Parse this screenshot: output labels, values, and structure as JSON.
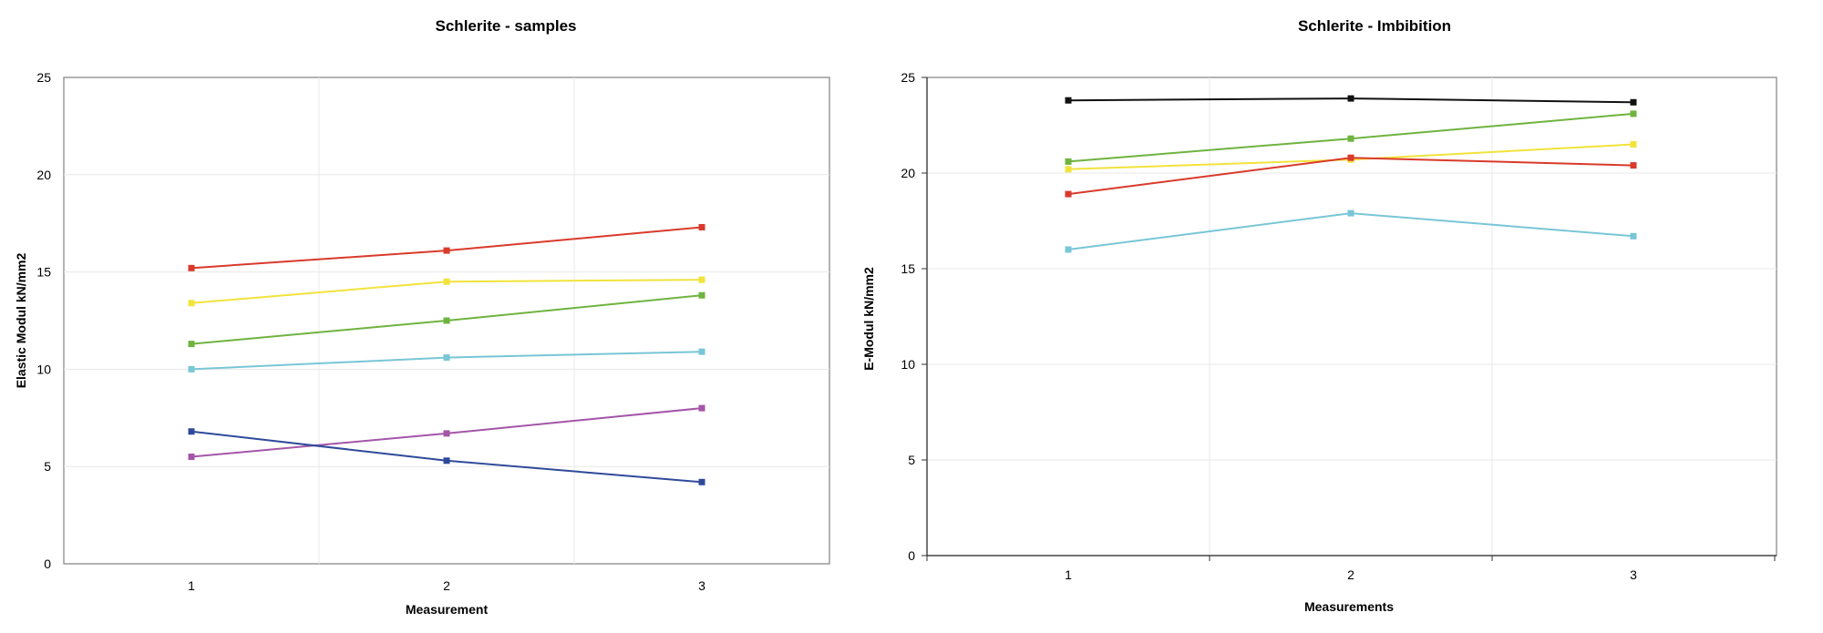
{
  "chart_data": [
    {
      "type": "line",
      "title": "Schlerite - samples",
      "xlabel": "Measurement",
      "ylabel": "Elastic Modul kN/mm2",
      "categories": [
        "1",
        "2",
        "3"
      ],
      "ylim": [
        0,
        25
      ],
      "yticks": [
        0,
        5,
        10,
        15,
        20,
        25
      ],
      "grid": true,
      "legend": "none",
      "series": [
        {
          "color": "#d93a2b",
          "values": [
            15.2,
            16.1,
            17.3
          ]
        },
        {
          "color": "#f2e33b",
          "values": [
            13.4,
            14.5,
            14.6
          ]
        },
        {
          "color": "#6fb33f",
          "values": [
            11.3,
            12.5,
            13.8
          ]
        },
        {
          "color": "#78c6d6",
          "values": [
            10.0,
            10.6,
            10.9
          ]
        },
        {
          "color": "#a455a8",
          "values": [
            5.5,
            6.7,
            8.0
          ]
        },
        {
          "color": "#2f4a9a",
          "values": [
            6.8,
            5.3,
            4.2
          ]
        }
      ]
    },
    {
      "type": "line",
      "title": "Schlerite - Imbibition",
      "xlabel": "Measurements",
      "ylabel": "E-Modul kN/mm2",
      "categories": [
        "1",
        "2",
        "3"
      ],
      "ylim": [
        0,
        25
      ],
      "yticks": [
        0,
        5,
        10,
        15,
        20,
        25
      ],
      "grid": true,
      "legend": "none",
      "series": [
        {
          "color": "#111111",
          "values": [
            23.8,
            23.9,
            23.7
          ]
        },
        {
          "color": "#6fb33f",
          "values": [
            20.6,
            21.8,
            23.1
          ]
        },
        {
          "color": "#f2e33b",
          "values": [
            20.2,
            20.7,
            21.5
          ]
        },
        {
          "color": "#d93a2b",
          "values": [
            18.9,
            20.8,
            20.4
          ]
        },
        {
          "color": "#78c6d6",
          "values": [
            16.0,
            17.9,
            16.7
          ]
        }
      ]
    }
  ]
}
